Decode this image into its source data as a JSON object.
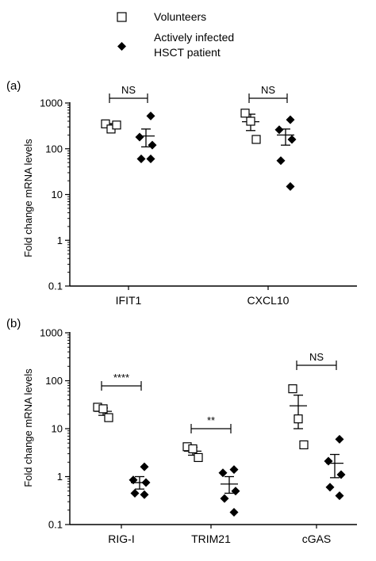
{
  "legend": {
    "volunteers": "Volunteers",
    "patient_line1": "Actively infected",
    "patient_line2": "HSCT patient"
  },
  "chart_data": [
    {
      "panel": "(a)",
      "type": "scatter",
      "ylabel": "Fold change mRNA levels",
      "yscale": "log",
      "ylim": [
        0.1,
        1000
      ],
      "yticks": [
        "0.1",
        "1",
        "10",
        "100",
        "1000"
      ],
      "categories": [
        "IFIT1",
        "CXCL10"
      ],
      "groups": [
        {
          "category": "IFIT1",
          "volunteers": {
            "points": [
              350,
              270,
              330
            ],
            "mean": 320,
            "sem": [
              290,
              355
            ]
          },
          "patients": {
            "points": [
              520,
              180,
              120,
              60,
              60
            ],
            "mean": 190,
            "sem": [
              110,
              270
            ]
          },
          "significance": "NS"
        },
        {
          "category": "CXCL10",
          "volunteers": {
            "points": [
              600,
              400,
              160
            ],
            "mean": 390,
            "sem": [
              250,
              570
            ]
          },
          "patients": {
            "points": [
              430,
              260,
              160,
              55,
              15
            ],
            "mean": 200,
            "sem": [
              120,
              270
            ]
          },
          "significance": "NS"
        }
      ]
    },
    {
      "panel": "(b)",
      "type": "scatter",
      "ylabel": "Fold change mRNA levels",
      "yscale": "log",
      "ylim": [
        0.1,
        1000
      ],
      "yticks": [
        "0.1",
        "1",
        "10",
        "100",
        "1000"
      ],
      "categories": [
        "RIG-I",
        "TRIM21",
        "cGAS"
      ],
      "groups": [
        {
          "category": "RIG-I",
          "volunteers": {
            "points": [
              28,
              26,
              17
            ],
            "mean": 23,
            "sem": [
              19,
              27
            ]
          },
          "patients": {
            "points": [
              1.6,
              0.85,
              0.75,
              0.45,
              0.42
            ],
            "mean": 0.75,
            "sem": [
              0.55,
              1.0
            ]
          },
          "significance": "****"
        },
        {
          "category": "TRIM21",
          "volunteers": {
            "points": [
              4.2,
              3.8,
              2.5
            ],
            "mean": 3.4,
            "sem": [
              2.8,
              4.1
            ]
          },
          "patients": {
            "points": [
              1.4,
              1.2,
              0.5,
              0.35,
              0.18
            ],
            "mean": 0.7,
            "sem": [
              0.45,
              1.0
            ]
          },
          "significance": "**"
        },
        {
          "category": "cGAS",
          "volunteers": {
            "points": [
              68,
              16,
              4.6
            ],
            "mean": 30,
            "sem": [
              10,
              50
            ]
          },
          "patients": {
            "points": [
              6,
              2.1,
              1.1,
              0.6,
              0.4
            ],
            "mean": 1.9,
            "sem": [
              0.95,
              2.9
            ]
          },
          "significance": "NS"
        }
      ]
    }
  ]
}
